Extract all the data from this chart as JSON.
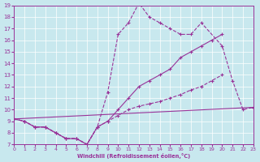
{
  "bg_color": "#c8e8ee",
  "line_color": "#993399",
  "xlim": [
    0,
    23
  ],
  "ylim": [
    7,
    19
  ],
  "xticks": [
    0,
    1,
    2,
    3,
    4,
    5,
    6,
    7,
    8,
    9,
    10,
    11,
    12,
    13,
    14,
    15,
    16,
    17,
    18,
    19,
    20,
    21,
    22,
    23
  ],
  "yticks": [
    7,
    8,
    9,
    10,
    11,
    12,
    13,
    14,
    15,
    16,
    17,
    18,
    19
  ],
  "xlabel": "Windchill (Refroidissement éolien,°C)",
  "line1_x": [
    0,
    1,
    2,
    3,
    4,
    5,
    6,
    7,
    8,
    9,
    10,
    11,
    12,
    13,
    14,
    15,
    16,
    17,
    18,
    20,
    21,
    22,
    23
  ],
  "line1_y": [
    9.2,
    9.0,
    8.5,
    8.5,
    8.0,
    7.5,
    7.5,
    7.0,
    8.5,
    11.5,
    16.5,
    17.5,
    19.2,
    18.0,
    17.5,
    17.0,
    16.5,
    16.5,
    17.5,
    15.5,
    12.5,
    10.0,
    10.2
  ],
  "line2_x": [
    0,
    1,
    2,
    3,
    4,
    5,
    6,
    7,
    8,
    9,
    10,
    11,
    12,
    13,
    14,
    15,
    16,
    17,
    18,
    19,
    20,
    21,
    22,
    23
  ],
  "line2_y": [
    9.2,
    9.0,
    8.5,
    8.5,
    8.0,
    7.5,
    7.5,
    7.0,
    8.5,
    9.0,
    10.0,
    11.0,
    12.0,
    12.5,
    13.0,
    13.5,
    14.5,
    15.0,
    15.5,
    16.0,
    16.5,
    null,
    null,
    10.2
  ],
  "line3_x": [
    0,
    23
  ],
  "line3_y": [
    9.2,
    10.2
  ],
  "line4_x": [
    0,
    1,
    2,
    3,
    4,
    5,
    6,
    7,
    8,
    9,
    10,
    11,
    12,
    13,
    14,
    15,
    16,
    17,
    18,
    19,
    20,
    21,
    22,
    23
  ],
  "line4_y": [
    9.2,
    9.0,
    8.5,
    8.5,
    8.0,
    7.5,
    7.5,
    7.0,
    8.5,
    9.0,
    9.5,
    10.0,
    10.3,
    10.5,
    10.7,
    11.0,
    11.3,
    11.7,
    12.0,
    12.5,
    13.0,
    null,
    null,
    10.2
  ]
}
